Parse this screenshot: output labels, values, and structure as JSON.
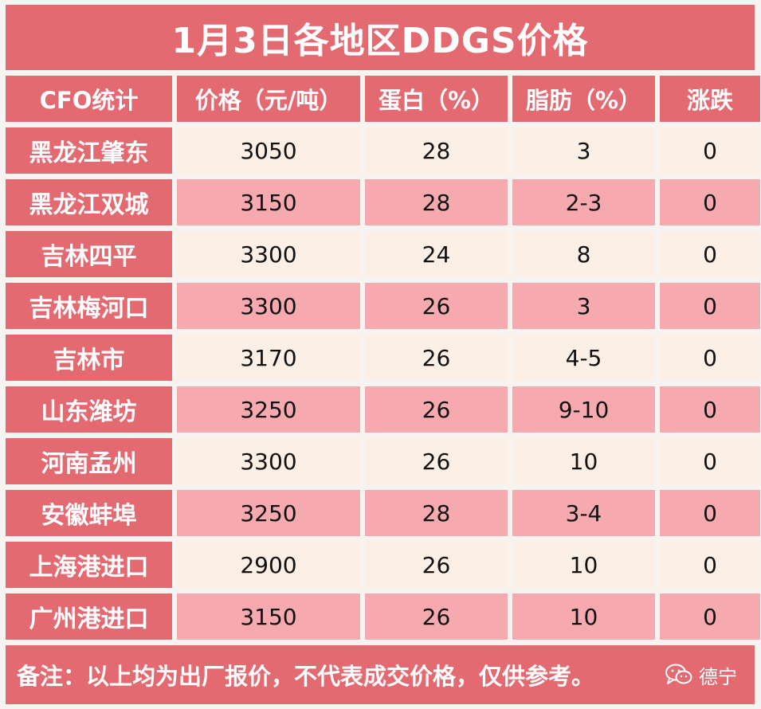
{
  "title": "1月3日各地区DDGS价格",
  "columns": [
    "CFO统计",
    "价格（元/吨）",
    "蛋白（%）",
    "脂肪（%）",
    "涨跌"
  ],
  "rows": [
    {
      "region": "黑龙江肇东",
      "price": "3050",
      "protein": "28",
      "fat": "3",
      "change": "0"
    },
    {
      "region": "黑龙江双城",
      "price": "3150",
      "protein": "28",
      "fat": "2-3",
      "change": "0"
    },
    {
      "region": "吉林四平",
      "price": "3300",
      "protein": "24",
      "fat": "8",
      "change": "0"
    },
    {
      "region": "吉林梅河口",
      "price": "3300",
      "protein": "26",
      "fat": "3",
      "change": "0"
    },
    {
      "region": "吉林市",
      "price": "3170",
      "protein": "26",
      "fat": "4-5",
      "change": "0"
    },
    {
      "region": "山东潍坊",
      "price": "3250",
      "protein": "26",
      "fat": "9-10",
      "change": "0"
    },
    {
      "region": "河南孟州",
      "price": "3300",
      "protein": "26",
      "fat": "10",
      "change": "0"
    },
    {
      "region": "安徽蚌埠",
      "price": "3250",
      "protein": "28",
      "fat": "3-4",
      "change": "0"
    },
    {
      "region": "上海港进口",
      "price": "2900",
      "protein": "26",
      "fat": "10",
      "change": "0"
    },
    {
      "region": "广州港进口",
      "price": "3150",
      "protein": "26",
      "fat": "10",
      "change": "0"
    }
  ],
  "footer": {
    "note": "备注：以上均为出厂报价，不代表成交价格，仅供参考。",
    "watermark": "德宁",
    "watermark_icon": "wechat-icon"
  },
  "colors": {
    "header": "#e46a71",
    "row_light": "#fbefe6",
    "row_pink": "#f6a9ae"
  }
}
